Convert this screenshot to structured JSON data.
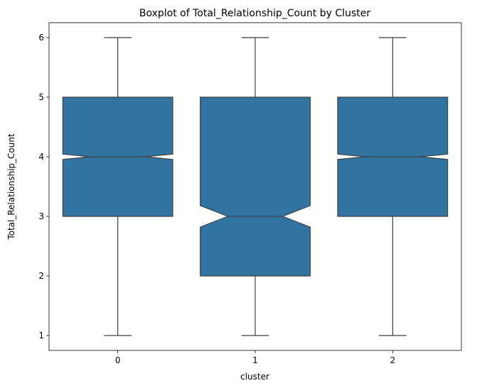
{
  "chart_data": {
    "type": "boxplot",
    "notched": true,
    "title": "Boxplot of Total_Relationship_Count by Cluster",
    "xlabel": "cluster",
    "ylabel": "Total_Relationship_Count",
    "categories": [
      "0",
      "1",
      "2"
    ],
    "yticks": [
      "1",
      "2",
      "3",
      "4",
      "5",
      "6"
    ],
    "ylim": [
      0.75,
      6.25
    ],
    "boxes": [
      {
        "category": "0",
        "whisker_low": 1,
        "q1": 3,
        "median": 4,
        "q3": 5,
        "whisker_high": 6,
        "notch_low": 3.955,
        "notch_high": 4.045
      },
      {
        "category": "1",
        "whisker_low": 1,
        "q1": 2,
        "median": 3,
        "q3": 5,
        "whisker_high": 6,
        "notch_low": 2.82,
        "notch_high": 3.18
      },
      {
        "category": "2",
        "whisker_low": 1,
        "q1": 3,
        "median": 4,
        "q3": 5,
        "whisker_high": 6,
        "notch_low": 3.955,
        "notch_high": 4.045
      }
    ],
    "box_color": "#3274a1",
    "line_color": "#3f3f3f",
    "grid": false,
    "legend": "none"
  }
}
